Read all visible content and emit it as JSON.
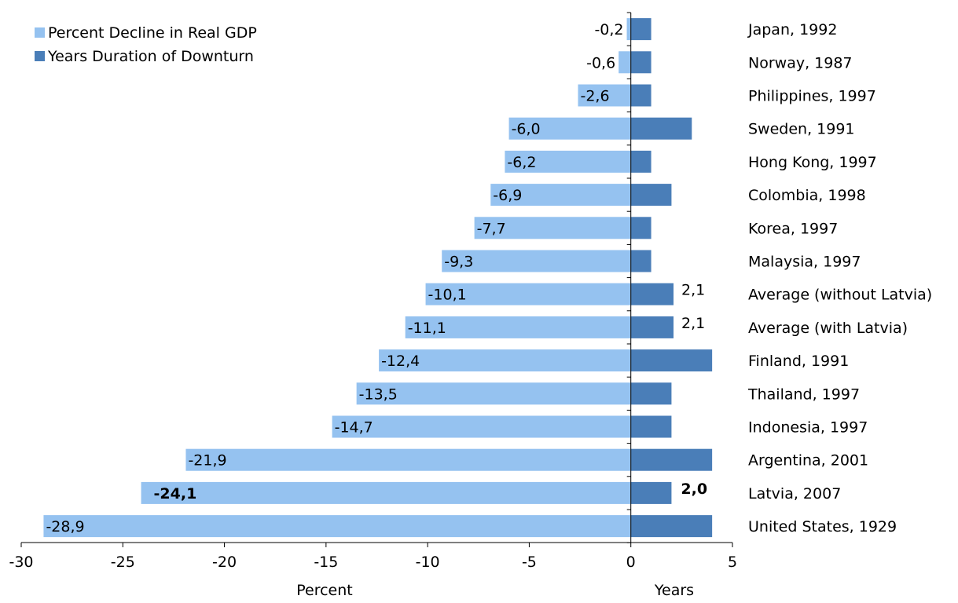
{
  "chart_data": {
    "type": "bar",
    "orientation": "horizontal",
    "title": "",
    "legend_position": "top-left",
    "grid": false,
    "categories": [
      "Japan, 1992",
      "Norway, 1987",
      "Philippines, 1997",
      "Sweden, 1991",
      "Hong Kong, 1997",
      "Colombia, 1998",
      "Korea, 1997",
      "Malaysia, 1997",
      "Average (without Latvia)",
      "Average (with Latvia)",
      "Finland, 1991",
      "Thailand, 1997",
      "Indonesia, 1997",
      "Argentina, 2001",
      "Latvia, 2007",
      "United States, 1929"
    ],
    "series": [
      {
        "name": "Percent Decline in Real GDP",
        "color": "#95C2F0",
        "values": [
          -0.2,
          -0.6,
          -2.6,
          -6.0,
          -6.2,
          -6.9,
          -7.7,
          -9.3,
          -10.1,
          -11.1,
          -12.4,
          -13.5,
          -14.7,
          -21.9,
          -24.1,
          -28.9
        ],
        "labels": [
          "-0,2",
          "-0,6",
          "-2,6",
          "-6,0",
          "-6,2",
          "-6,9",
          "-7,7",
          "-9,3",
          "-10,1",
          "-11,1",
          "-12,4",
          "-13,5",
          "-14,7",
          "-21,9",
          "-24,1",
          "-28,9"
        ]
      },
      {
        "name": "Years Duration of Downturn",
        "color": "#4A7EB8",
        "values": [
          1,
          1,
          1,
          3,
          1,
          2,
          1,
          1,
          2.1,
          2.1,
          4,
          2,
          2,
          4,
          2,
          4
        ],
        "labels": [
          "",
          "",
          "",
          "",
          "",
          "",
          "",
          "",
          "2,1",
          "2,1",
          "",
          "",
          "",
          "",
          "2,0",
          ""
        ]
      }
    ],
    "highlight_index": 14,
    "x_axis": {
      "xlim": [
        -30,
        5
      ],
      "ticks": [
        -30,
        -25,
        -20,
        -15,
        -10,
        -5,
        0,
        5
      ],
      "tick_labels": [
        "-30",
        "-25",
        "-20",
        "-15",
        "-10",
        "-5",
        "0",
        "5"
      ],
      "left_label": "Percent",
      "right_label": "Years"
    }
  }
}
